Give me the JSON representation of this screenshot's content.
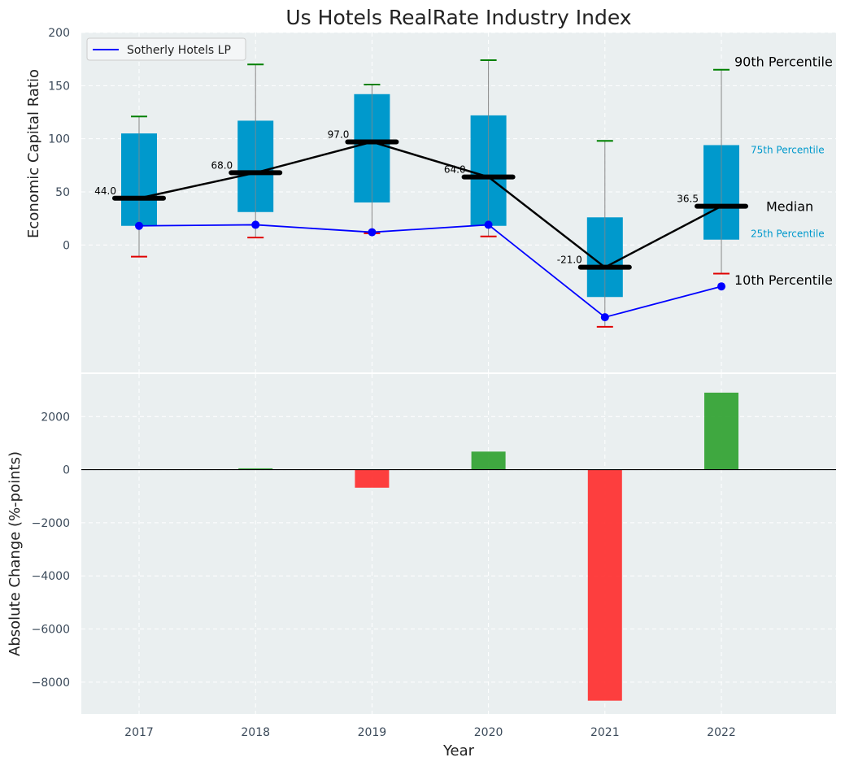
{
  "chart_data": [
    {
      "type": "box",
      "title": "Us Hotels RealRate Industry Index",
      "ylabel": "Economic Capital Ratio",
      "ylim": [
        -120,
        200
      ],
      "yticks": [
        0,
        50,
        100,
        150,
        200
      ],
      "categories": [
        "2017",
        "2018",
        "2019",
        "2020",
        "2021",
        "2022"
      ],
      "boxes": {
        "p10": [
          -11,
          7,
          11,
          8,
          -77,
          -27
        ],
        "p25": [
          18,
          31,
          40,
          18,
          -49,
          5
        ],
        "median": [
          44.0,
          68.0,
          97.0,
          64.0,
          -21.0,
          36.5
        ],
        "p75": [
          105,
          117,
          142,
          122,
          26,
          94
        ],
        "p90": [
          121,
          170,
          151,
          174,
          98,
          165
        ]
      },
      "median_labels": [
        "44.0",
        "68.0",
        "97.0",
        "64.0",
        "-21.0",
        "36.5"
      ],
      "series": [
        {
          "name": "Sotherly Hotels LP",
          "values": [
            18,
            19,
            12,
            19,
            -68,
            -39
          ],
          "color": "#0000ff"
        }
      ],
      "annotations": {
        "p90": "90th Percentile",
        "p75": "75th Percentile",
        "median": "Median",
        "p25": "25th Percentile",
        "p10": "10th Percentile"
      },
      "legend": {
        "placement": "top-left"
      },
      "grid": true
    },
    {
      "type": "bar",
      "ylabel": "Absolute Change (%-points)",
      "xlabel": "Year",
      "ylim": [
        -9200,
        3600
      ],
      "yticks": [
        -8000,
        -6000,
        -4000,
        -2000,
        0,
        2000
      ],
      "ytick_labels": [
        "−8000",
        "−6000",
        "−4000",
        "−2000",
        "0",
        "2000"
      ],
      "categories": [
        "2017",
        "2018",
        "2019",
        "2020",
        "2021",
        "2022"
      ],
      "values": [
        0,
        50,
        -680,
        680,
        -8700,
        2900
      ],
      "positive_color": "#2ca02c",
      "negative_color": "#ff2a2a",
      "grid": true
    }
  ],
  "colors": {
    "plot_bg": "#eaeff0",
    "box_fill": "#0099cc",
    "whisker": "#888888",
    "p90_cap": "#008000",
    "p10_cap": "#e00000",
    "median_line": "#000000",
    "grid": "#ffffff"
  }
}
